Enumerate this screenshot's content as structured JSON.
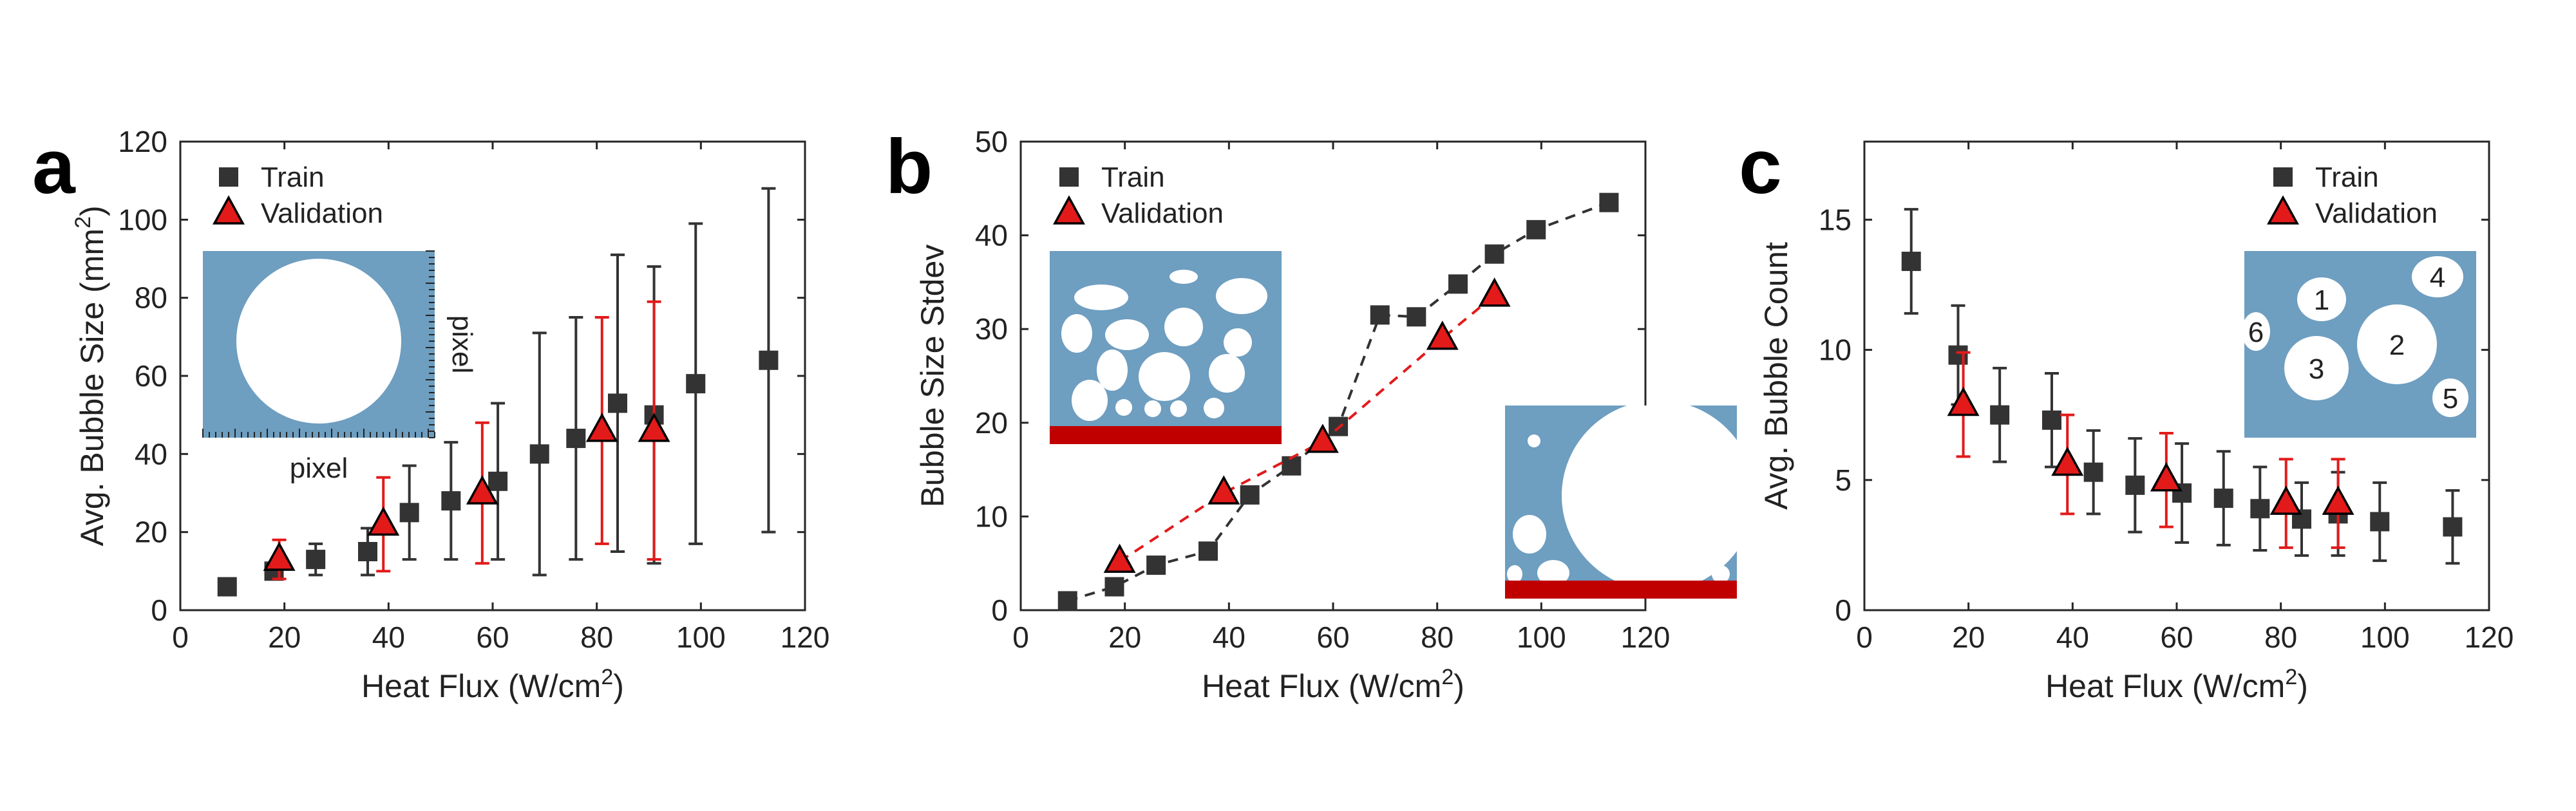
{
  "figure": {
    "title": "",
    "colors": {
      "train": "#333333",
      "validation": "#e21a1a",
      "inset_bg": "#6e9ec0",
      "heater": "#c00000",
      "bubble": "#ffffff"
    }
  },
  "chart_data": [
    {
      "panel": "a",
      "type": "scatter",
      "xlabel": "Heat Flux (W/cm",
      "xlabel_sup": "2",
      "xlabel_end": ")",
      "ylabel": "Avg. Bubble Size (mm",
      "ylabel_sup": "2",
      "ylabel_end": ")",
      "xlim": [
        0,
        120
      ],
      "ylim": [
        0,
        120
      ],
      "xticks": [
        "0",
        "20",
        "40",
        "60",
        "80",
        "100",
        "120"
      ],
      "yticks": [
        "0",
        "20",
        "40",
        "60",
        "80",
        "100",
        "120"
      ],
      "grid": false,
      "legend_position": "top-left",
      "series": [
        {
          "name": "Train",
          "marker": "square",
          "x": [
            9,
            18,
            26,
            36,
            44,
            52,
            61,
            69,
            76,
            84,
            91,
            99,
            113
          ],
          "y": [
            6,
            10,
            13,
            15,
            25,
            28,
            33,
            40,
            44,
            53,
            50,
            58,
            64
          ],
          "err": [
            0,
            2,
            4,
            6,
            12,
            15,
            20,
            31,
            31,
            38,
            38,
            41,
            44
          ]
        },
        {
          "name": "Validation",
          "marker": "triangle",
          "x": [
            19,
            39,
            58,
            81,
            91
          ],
          "y": [
            13,
            22,
            30,
            46,
            46
          ],
          "err": [
            5,
            12,
            18,
            29,
            33
          ]
        }
      ],
      "inset": {
        "type": "single-bubble",
        "xlabel": "pixel",
        "ylabel": "pixel"
      }
    },
    {
      "panel": "b",
      "type": "line",
      "xlabel": "Heat Flux (W/cm",
      "xlabel_sup": "2",
      "xlabel_end": ")",
      "ylabel": "Bubble Size Stdev",
      "xlim": [
        0,
        120
      ],
      "ylim": [
        0,
        50
      ],
      "xticks": [
        "0",
        "20",
        "40",
        "60",
        "80",
        "100",
        "120"
      ],
      "yticks": [
        "0",
        "10",
        "20",
        "30",
        "40",
        "50"
      ],
      "grid": false,
      "legend_position": "top-left",
      "series": [
        {
          "name": "Train",
          "marker": "square",
          "dashed": true,
          "x": [
            9,
            18,
            26,
            36,
            44,
            52,
            61,
            69,
            76,
            84,
            91,
            99,
            113
          ],
          "y": [
            1,
            2.5,
            4.8,
            6.3,
            12.3,
            15.4,
            19.6,
            31.5,
            31.3,
            34.8,
            38,
            40.6,
            43.5
          ]
        },
        {
          "name": "Validation",
          "marker": "triangle",
          "dashed": true,
          "x": [
            19,
            39,
            58,
            81,
            91
          ],
          "y": [
            5.2,
            12.5,
            18,
            29,
            33.6
          ]
        }
      ],
      "insets": [
        {
          "type": "many-small-bubbles"
        },
        {
          "type": "large-merged-bubble"
        }
      ]
    },
    {
      "panel": "c",
      "type": "scatter",
      "xlabel": "Heat Flux (W/cm",
      "xlabel_sup": "2",
      "xlabel_end": ")",
      "ylabel": "Avg. Bubble Count",
      "xlim": [
        0,
        120
      ],
      "ylim": [
        0,
        18
      ],
      "xticks": [
        "0",
        "20",
        "40",
        "60",
        "80",
        "100",
        "120"
      ],
      "yticks": [
        "0",
        "5",
        "10",
        "15"
      ],
      "grid": false,
      "legend_position": "top-right",
      "series": [
        {
          "name": "Train",
          "marker": "square",
          "x": [
            9,
            18,
            26,
            36,
            44,
            52,
            61,
            69,
            76,
            84,
            91,
            99,
            113
          ],
          "y": [
            13.4,
            9.8,
            7.5,
            7.3,
            5.3,
            4.8,
            4.5,
            4.3,
            3.9,
            3.5,
            3.7,
            3.4,
            3.2
          ],
          "err": [
            2.0,
            1.9,
            1.8,
            1.8,
            1.6,
            1.8,
            1.9,
            1.8,
            1.6,
            1.4,
            1.6,
            1.5,
            1.4
          ]
        },
        {
          "name": "Validation",
          "marker": "triangle",
          "x": [
            19,
            39,
            58,
            81,
            91
          ],
          "y": [
            7.9,
            5.6,
            5.0,
            4.1,
            4.1
          ],
          "err": [
            2.0,
            1.9,
            1.8,
            1.7,
            1.7
          ]
        }
      ],
      "inset": {
        "type": "numbered-bubbles",
        "labels": [
          "1",
          "2",
          "3",
          "4",
          "5",
          "6"
        ]
      }
    }
  ]
}
